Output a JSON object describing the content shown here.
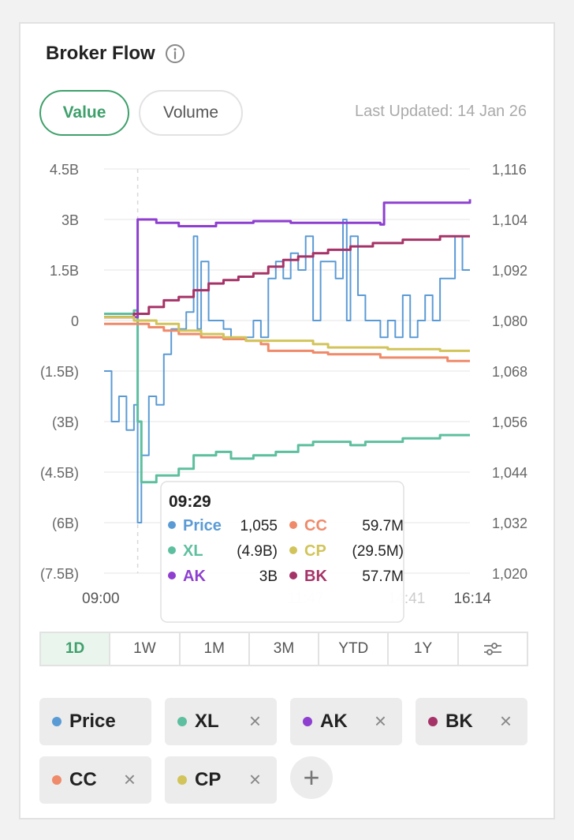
{
  "header": {
    "title": "Broker Flow",
    "info_icon": "info-icon"
  },
  "toggle": {
    "value_label": "Value",
    "volume_label": "Volume"
  },
  "last_updated": "Last Updated: 14 Jan 26",
  "ranges": [
    "1D",
    "1W",
    "1M",
    "3M",
    "YTD",
    "1Y"
  ],
  "range_settings_icon": "sliders-icon",
  "chips": [
    {
      "label": "Price",
      "color": "#5b9bd5",
      "removable": false
    },
    {
      "label": "XL",
      "color": "#5dbf9f",
      "removable": true
    },
    {
      "label": "AK",
      "color": "#8e3fd0",
      "removable": true
    },
    {
      "label": "BK",
      "color": "#a63367",
      "removable": true
    },
    {
      "label": "CC",
      "color": "#ef8a6a",
      "removable": true
    },
    {
      "label": "CP",
      "color": "#d2c45a",
      "removable": true
    }
  ],
  "chip_remove_symbol": "×",
  "add_symbol": "+",
  "chart_data": {
    "type": "line",
    "left_axis_ticks": [
      "4.5B",
      "3B",
      "1.5B",
      "0",
      "(1.5B)",
      "(3B)",
      "(4.5B)",
      "(6B)",
      "(7.5B)"
    ],
    "right_axis_ticks": [
      "1,116",
      "1,104",
      "1,092",
      "1,080",
      "1,068",
      "1,056",
      "1,044",
      "1,032",
      "1,020"
    ],
    "x_ticks": [
      "09:00",
      "11:47",
      "14:41",
      "16:14"
    ],
    "ylim_left": [
      -7.5,
      4.5
    ],
    "ylim_right": [
      1020,
      1116
    ],
    "series": [
      {
        "name": "Price",
        "axis": "right",
        "color": "#5b9bd5",
        "points": [
          [
            0,
            1068
          ],
          [
            2,
            1056
          ],
          [
            4,
            1062
          ],
          [
            6,
            1054
          ],
          [
            8,
            1060
          ],
          [
            9,
            1032
          ],
          [
            10,
            1048
          ],
          [
            12,
            1062
          ],
          [
            14,
            1060
          ],
          [
            16,
            1072
          ],
          [
            18,
            1078
          ],
          [
            20,
            1078
          ],
          [
            22,
            1082
          ],
          [
            24,
            1100
          ],
          [
            25,
            1078
          ],
          [
            26,
            1094
          ],
          [
            28,
            1080
          ],
          [
            30,
            1080
          ],
          [
            32,
            1078
          ],
          [
            34,
            1076
          ],
          [
            36,
            1076
          ],
          [
            38,
            1076
          ],
          [
            40,
            1080
          ],
          [
            42,
            1076
          ],
          [
            44,
            1090
          ],
          [
            46,
            1094
          ],
          [
            48,
            1090
          ],
          [
            50,
            1096
          ],
          [
            52,
            1092
          ],
          [
            54,
            1100
          ],
          [
            56,
            1080
          ],
          [
            58,
            1094
          ],
          [
            60,
            1094
          ],
          [
            62,
            1090
          ],
          [
            64,
            1104
          ],
          [
            65,
            1080
          ],
          [
            66,
            1100
          ],
          [
            68,
            1086
          ],
          [
            70,
            1080
          ],
          [
            72,
            1080
          ],
          [
            74,
            1076
          ],
          [
            76,
            1080
          ],
          [
            78,
            1076
          ],
          [
            80,
            1086
          ],
          [
            82,
            1076
          ],
          [
            84,
            1080
          ],
          [
            86,
            1086
          ],
          [
            88,
            1080
          ],
          [
            90,
            1090
          ],
          [
            92,
            1090
          ],
          [
            94,
            1100
          ],
          [
            96,
            1092
          ],
          [
            98,
            1092
          ]
        ]
      },
      {
        "name": "XL",
        "axis": "left",
        "color": "#5dbf9f",
        "points": [
          [
            0,
            0.2
          ],
          [
            8,
            0.3
          ],
          [
            9,
            -3
          ],
          [
            10,
            -4.8
          ],
          [
            14,
            -4.6
          ],
          [
            20,
            -4.4
          ],
          [
            24,
            -4.0
          ],
          [
            30,
            -3.9
          ],
          [
            34,
            -4.1
          ],
          [
            40,
            -4.0
          ],
          [
            46,
            -3.9
          ],
          [
            52,
            -3.7
          ],
          [
            56,
            -3.6
          ],
          [
            60,
            -3.6
          ],
          [
            66,
            -3.7
          ],
          [
            70,
            -3.6
          ],
          [
            80,
            -3.5
          ],
          [
            90,
            -3.4
          ],
          [
            98,
            -3.4
          ]
        ]
      },
      {
        "name": "AK",
        "axis": "left",
        "color": "#8e3fd0",
        "points": [
          [
            0,
            0.1
          ],
          [
            8,
            0.1
          ],
          [
            9,
            3.0
          ],
          [
            14,
            2.9
          ],
          [
            20,
            2.8
          ],
          [
            30,
            2.9
          ],
          [
            40,
            2.95
          ],
          [
            50,
            2.9
          ],
          [
            60,
            2.9
          ],
          [
            70,
            2.9
          ],
          [
            74,
            2.85
          ],
          [
            75,
            3.5
          ],
          [
            90,
            3.5
          ],
          [
            98,
            3.6
          ]
        ]
      },
      {
        "name": "BK",
        "axis": "left",
        "color": "#a63367",
        "points": [
          [
            0,
            0.1
          ],
          [
            8,
            0.2
          ],
          [
            12,
            0.4
          ],
          [
            16,
            0.6
          ],
          [
            20,
            0.7
          ],
          [
            24,
            0.9
          ],
          [
            28,
            1.1
          ],
          [
            32,
            1.2
          ],
          [
            36,
            1.3
          ],
          [
            40,
            1.4
          ],
          [
            44,
            1.6
          ],
          [
            48,
            1.8
          ],
          [
            52,
            1.9
          ],
          [
            56,
            2.0
          ],
          [
            60,
            2.1
          ],
          [
            66,
            2.2
          ],
          [
            72,
            2.3
          ],
          [
            80,
            2.4
          ],
          [
            90,
            2.5
          ],
          [
            98,
            2.5
          ]
        ]
      },
      {
        "name": "CC",
        "axis": "left",
        "color": "#ef8a6a",
        "points": [
          [
            0,
            -0.1
          ],
          [
            8,
            -0.1
          ],
          [
            12,
            -0.2
          ],
          [
            16,
            -0.3
          ],
          [
            20,
            -0.4
          ],
          [
            26,
            -0.5
          ],
          [
            32,
            -0.55
          ],
          [
            38,
            -0.6
          ],
          [
            42,
            -0.7
          ],
          [
            44,
            -0.9
          ],
          [
            50,
            -0.9
          ],
          [
            56,
            -0.95
          ],
          [
            60,
            -1.0
          ],
          [
            66,
            -1.0
          ],
          [
            70,
            -1.0
          ],
          [
            74,
            -1.1
          ],
          [
            80,
            -1.1
          ],
          [
            86,
            -1.1
          ],
          [
            90,
            -1.1
          ],
          [
            92,
            -1.2
          ],
          [
            98,
            -1.2
          ]
        ]
      },
      {
        "name": "CP",
        "axis": "left",
        "color": "#d2c45a",
        "points": [
          [
            0,
            0.1
          ],
          [
            8,
            0
          ],
          [
            14,
            -0.1
          ],
          [
            20,
            -0.3
          ],
          [
            26,
            -0.4
          ],
          [
            32,
            -0.5
          ],
          [
            38,
            -0.6
          ],
          [
            44,
            -0.6
          ],
          [
            50,
            -0.6
          ],
          [
            56,
            -0.7
          ],
          [
            60,
            -0.8
          ],
          [
            66,
            -0.8
          ],
          [
            70,
            -0.8
          ],
          [
            76,
            -0.85
          ],
          [
            84,
            -0.85
          ],
          [
            90,
            -0.9
          ],
          [
            98,
            -0.9
          ]
        ]
      }
    ],
    "tooltip": {
      "time": "09:29",
      "rows": [
        {
          "name": "Price",
          "value": "1,055",
          "color": "#5b9bd5"
        },
        {
          "name": "CC",
          "value": "59.7M",
          "color": "#ef8a6a"
        },
        {
          "name": "XL",
          "value": "(4.9B)",
          "color": "#5dbf9f"
        },
        {
          "name": "CP",
          "value": "(29.5M)",
          "color": "#d2c45a"
        },
        {
          "name": "AK",
          "value": "3B",
          "color": "#8e3fd0"
        },
        {
          "name": "BK",
          "value": "57.7M",
          "color": "#a63367"
        }
      ]
    }
  }
}
